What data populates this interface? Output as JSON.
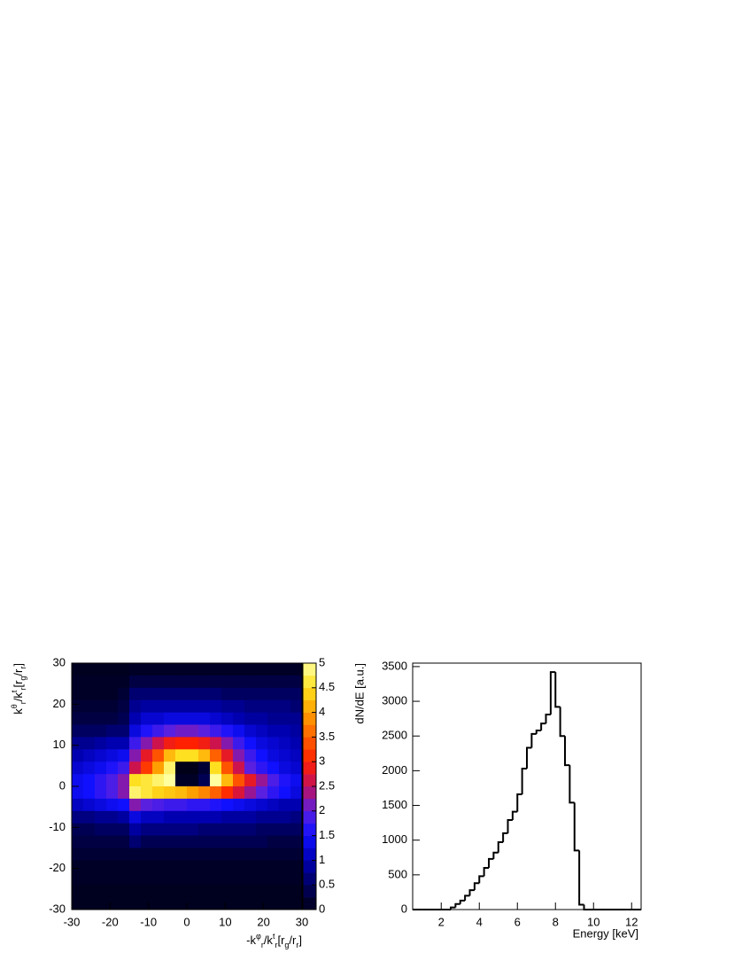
{
  "chart_data": [
    {
      "type": "heatmap",
      "xlabel": [
        "-k",
        "φ",
        "r",
        "/k",
        "t",
        "r",
        "[r",
        "g",
        "/r",
        "r",
        "]"
      ],
      "ylabel": [
        "k",
        "θ",
        "r",
        "/k",
        "t",
        "r",
        "[r",
        "g",
        "/r",
        "r",
        "]"
      ],
      "xlim": [
        -30,
        30
      ],
      "ylim": [
        -30,
        30
      ],
      "xticks": [
        -30,
        -20,
        -10,
        0,
        10,
        20,
        30
      ],
      "yticks": [
        -30,
        -20,
        -10,
        0,
        10,
        20,
        30
      ],
      "zlim": [
        0,
        5
      ],
      "zticks": [
        0,
        0.5,
        1,
        1.5,
        2,
        2.5,
        3,
        3.5,
        4,
        4.5,
        5
      ],
      "colorscale": [
        "#000018",
        "#000060",
        "#0000b0",
        "#1010ff",
        "#5a20e0",
        "#c01060",
        "#ff2000",
        "#ff6000",
        "#ffa000",
        "#ffe020",
        "#ffffa0"
      ],
      "x": [
        -28.5,
        -25.5,
        -22.5,
        -19.5,
        -16.5,
        -13.5,
        -10.5,
        -7.5,
        -4.5,
        -1.5,
        1.5,
        4.5,
        7.5,
        10.5,
        13.5,
        16.5,
        19.5,
        22.5,
        25.5,
        28.5
      ],
      "y": [
        28.5,
        25.5,
        22.5,
        19.5,
        16.5,
        13.5,
        10.5,
        7.5,
        4.5,
        1.5,
        -1.5,
        -4.5,
        -7.5,
        -10.5,
        -13.5,
        -16.5,
        -19.5,
        -22.5,
        -25.5,
        -28.5
      ],
      "z": [
        [
          0.05,
          0.05,
          0.05,
          0.05,
          0.05,
          0.1,
          0.1,
          0.1,
          0.1,
          0.1,
          0.1,
          0.1,
          0.1,
          0.1,
          0.1,
          0.1,
          0.1,
          0.1,
          0.1,
          0.1
        ],
        [
          0.1,
          0.1,
          0.1,
          0.1,
          0.1,
          0.3,
          0.3,
          0.3,
          0.3,
          0.3,
          0.3,
          0.3,
          0.3,
          0.3,
          0.3,
          0.3,
          0.3,
          0.3,
          0.3,
          0.3
        ],
        [
          0.1,
          0.1,
          0.1,
          0.1,
          0.2,
          0.6,
          0.6,
          0.6,
          0.6,
          0.6,
          0.6,
          0.6,
          0.6,
          0.5,
          0.5,
          0.5,
          0.5,
          0.5,
          0.5,
          0.5
        ],
        [
          0.2,
          0.2,
          0.2,
          0.2,
          0.3,
          0.8,
          0.9,
          0.9,
          0.9,
          0.9,
          0.9,
          0.9,
          0.9,
          0.8,
          0.8,
          0.7,
          0.7,
          0.7,
          0.7,
          0.6
        ],
        [
          0.3,
          0.3,
          0.3,
          0.3,
          0.4,
          1.0,
          1.2,
          1.2,
          1.3,
          1.3,
          1.3,
          1.3,
          1.2,
          1.1,
          1.0,
          0.9,
          0.9,
          0.8,
          0.8,
          0.8
        ],
        [
          0.5,
          0.5,
          0.5,
          0.6,
          0.6,
          1.3,
          1.6,
          1.8,
          2.0,
          2.1,
          2.1,
          2.0,
          1.8,
          1.6,
          1.4,
          1.2,
          1.1,
          1.0,
          1.0,
          0.9
        ],
        [
          0.8,
          0.8,
          0.9,
          1.0,
          1.0,
          1.8,
          2.2,
          2.6,
          2.9,
          3.0,
          3.0,
          2.9,
          2.6,
          2.2,
          1.8,
          1.5,
          1.3,
          1.2,
          1.1,
          1.0
        ],
        [
          1.0,
          1.1,
          1.2,
          1.3,
          1.4,
          2.2,
          2.8,
          3.4,
          4.2,
          4.5,
          4.5,
          4.2,
          3.5,
          2.8,
          2.2,
          1.8,
          1.5,
          1.3,
          1.2,
          1.1
        ],
        [
          1.2,
          1.3,
          1.4,
          1.6,
          1.8,
          2.6,
          3.2,
          4.0,
          4.8,
          0,
          0,
          0.2,
          4.5,
          3.4,
          2.6,
          2.0,
          1.7,
          1.5,
          1.3,
          1.2
        ],
        [
          1.4,
          1.5,
          1.7,
          1.9,
          2.2,
          4.5,
          4.6,
          4.8,
          5.0,
          0.1,
          0.1,
          0.4,
          5.0,
          4.2,
          3.4,
          2.8,
          2.3,
          1.9,
          1.6,
          1.4
        ],
        [
          1.4,
          1.5,
          1.7,
          1.9,
          2.2,
          4.8,
          4.6,
          4.4,
          4.3,
          4.2,
          4.0,
          3.8,
          3.5,
          3.1,
          2.7,
          2.3,
          2.0,
          1.7,
          1.5,
          1.3
        ],
        [
          1.1,
          1.2,
          1.3,
          1.4,
          1.5,
          2.2,
          2.0,
          1.9,
          1.8,
          1.8,
          1.7,
          1.7,
          1.6,
          1.5,
          1.4,
          1.3,
          1.2,
          1.1,
          1.0,
          1.0
        ],
        [
          0.7,
          0.7,
          0.8,
          0.8,
          0.9,
          1.3,
          1.1,
          1.1,
          1.0,
          1.0,
          1.0,
          1.0,
          1.0,
          0.9,
          0.9,
          0.9,
          0.8,
          0.8,
          0.8,
          0.7
        ],
        [
          0.4,
          0.4,
          0.5,
          0.5,
          0.5,
          0.9,
          0.7,
          0.7,
          0.7,
          0.7,
          0.7,
          0.6,
          0.6,
          0.6,
          0.6,
          0.6,
          0.5,
          0.5,
          0.5,
          0.5
        ],
        [
          0.3,
          0.3,
          0.3,
          0.3,
          0.3,
          0.6,
          0.4,
          0.4,
          0.4,
          0.4,
          0.4,
          0.4,
          0.4,
          0.4,
          0.4,
          0.4,
          0.4,
          0.3,
          0.3,
          0.3
        ],
        [
          0.2,
          0.2,
          0.2,
          0.2,
          0.2,
          0.2,
          0.2,
          0.2,
          0.2,
          0.2,
          0.2,
          0.2,
          0.2,
          0.2,
          0.2,
          0.2,
          0.2,
          0.2,
          0.2,
          0.2
        ],
        [
          0.1,
          0.1,
          0.1,
          0.1,
          0.1,
          0.1,
          0.1,
          0.1,
          0.1,
          0.1,
          0.1,
          0.1,
          0.1,
          0.1,
          0.1,
          0.1,
          0.1,
          0.1,
          0.1,
          0.1
        ],
        [
          0.1,
          0.1,
          0.1,
          0.1,
          0.1,
          0.1,
          0.1,
          0.1,
          0.1,
          0.1,
          0.1,
          0.1,
          0.1,
          0.1,
          0.1,
          0.1,
          0.1,
          0.1,
          0.1,
          0.1
        ],
        [
          0.05,
          0.05,
          0.05,
          0.05,
          0.05,
          0.05,
          0.05,
          0.05,
          0.05,
          0.05,
          0.05,
          0.05,
          0.05,
          0.05,
          0.05,
          0.05,
          0.05,
          0.05,
          0.05,
          0.05
        ],
        [
          0.05,
          0.05,
          0.05,
          0.05,
          0.05,
          0.05,
          0.05,
          0.05,
          0.05,
          0.05,
          0.05,
          0.05,
          0.05,
          0.05,
          0.05,
          0.05,
          0.05,
          0.05,
          0.05,
          0.05
        ]
      ]
    },
    {
      "type": "histogram",
      "xlabel": "Energy [keV]",
      "ylabel": "dN/dE [a.u.]",
      "xlim": [
        0.5,
        12.5
      ],
      "ylim": [
        0,
        3550
      ],
      "xticks": [
        2,
        4,
        6,
        8,
        10,
        12
      ],
      "yticks": [
        0,
        500,
        1000,
        1500,
        2000,
        2500,
        3000,
        3500
      ],
      "color": "#000000",
      "bins": [
        0.5,
        0.75,
        1,
        1.25,
        1.5,
        1.75,
        2,
        2.25,
        2.5,
        2.75,
        3,
        3.25,
        3.5,
        3.75,
        4,
        4.25,
        4.5,
        4.75,
        5,
        5.25,
        5.5,
        5.75,
        6,
        6.25,
        6.5,
        6.75,
        7,
        7.25,
        7.5,
        7.75,
        8,
        8.25,
        8.5,
        8.75,
        9,
        9.25,
        9.5,
        9.75,
        10,
        10.25,
        10.5,
        10.75,
        11,
        11.25,
        11.5,
        11.75,
        12,
        12.25,
        12.5
      ],
      "values": [
        0,
        0,
        0,
        0,
        0,
        0,
        0,
        0,
        30,
        80,
        130,
        200,
        280,
        380,
        480,
        600,
        730,
        820,
        970,
        1100,
        1290,
        1410,
        1660,
        2030,
        2330,
        2530,
        2580,
        2680,
        2810,
        3420,
        2920,
        2500,
        2080,
        1540,
        850,
        70,
        0,
        0,
        0,
        0,
        0,
        0,
        0,
        0,
        0,
        0,
        0,
        0
      ]
    }
  ]
}
